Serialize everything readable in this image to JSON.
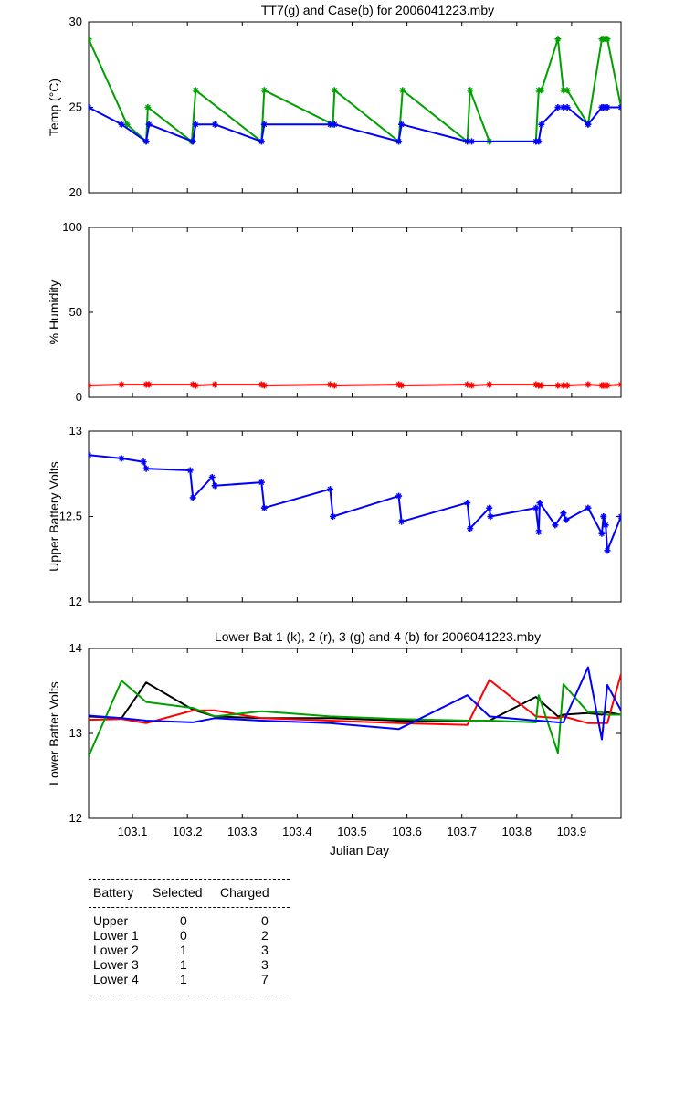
{
  "xaxis": {
    "label": "Julian Day",
    "ticks": [
      "103.1",
      "103.2",
      "103.3",
      "103.4",
      "103.5",
      "103.6",
      "103.7",
      "103.8",
      "103.9"
    ],
    "tick_values": [
      103.1,
      103.2,
      103.3,
      103.4,
      103.5,
      103.6,
      103.7,
      103.8,
      103.9
    ],
    "range": [
      103.02,
      103.99
    ]
  },
  "chart_data": [
    {
      "type": "line",
      "title": "TT7(g) and Case(b) for 2006041223.mby",
      "ylabel": "Temp  (°C)",
      "ylim": [
        20,
        30
      ],
      "yticks": [
        "20",
        "25",
        "30"
      ],
      "ytick_values": [
        20,
        25,
        30
      ],
      "markers": true,
      "series": [
        {
          "name": "TT7",
          "color": "#00a000",
          "x": [
            103.02,
            103.09,
            103.125,
            103.128,
            103.208,
            103.215,
            103.335,
            103.34,
            103.465,
            103.468,
            103.585,
            103.592,
            103.71,
            103.715,
            103.75,
            103.835,
            103.84,
            103.845,
            103.875,
            103.885,
            103.892,
            103.93,
            103.955,
            103.958,
            103.962,
            103.965,
            103.99
          ],
          "y": [
            29,
            24,
            23,
            25,
            23,
            26,
            23,
            26,
            24,
            26,
            23,
            26,
            23,
            26,
            23,
            23,
            26,
            26,
            29,
            26,
            26,
            24,
            29,
            29,
            29,
            29,
            25
          ]
        },
        {
          "name": "Case",
          "color": "#0000ff",
          "x": [
            103.02,
            103.08,
            103.125,
            103.13,
            103.21,
            103.215,
            103.25,
            103.335,
            103.34,
            103.46,
            103.468,
            103.585,
            103.59,
            103.71,
            103.718,
            103.835,
            103.84,
            103.845,
            103.875,
            103.885,
            103.892,
            103.93,
            103.955,
            103.958,
            103.962,
            103.965,
            103.99
          ],
          "y": [
            25,
            24,
            23,
            24,
            23,
            24,
            24,
            23,
            24,
            24,
            24,
            23,
            24,
            23,
            23,
            23,
            23,
            24,
            25,
            25,
            25,
            24,
            25,
            25,
            25,
            25,
            25
          ]
        }
      ]
    },
    {
      "type": "line",
      "title": "",
      "ylabel": "% Humidity",
      "ylim": [
        0,
        100
      ],
      "yticks": [
        "0",
        "50",
        "100"
      ],
      "ytick_values": [
        0,
        50,
        100
      ],
      "markers": true,
      "series": [
        {
          "name": "Humidity",
          "color": "#ff0000",
          "x": [
            103.02,
            103.08,
            103.125,
            103.13,
            103.21,
            103.215,
            103.25,
            103.335,
            103.34,
            103.46,
            103.468,
            103.585,
            103.59,
            103.71,
            103.718,
            103.75,
            103.835,
            103.84,
            103.845,
            103.875,
            103.885,
            103.892,
            103.93,
            103.955,
            103.958,
            103.962,
            103.965,
            103.99
          ],
          "y": [
            7,
            7.5,
            7.5,
            7.5,
            7.5,
            7,
            7.5,
            7.5,
            7,
            7.5,
            7,
            7.5,
            7,
            7.5,
            7,
            7.5,
            7.5,
            7,
            7,
            7,
            7,
            7,
            7.5,
            7,
            7,
            7,
            7,
            7.5
          ]
        }
      ]
    },
    {
      "type": "line",
      "title": "",
      "ylabel": "Upper Battery Volts",
      "ylim": [
        12,
        13
      ],
      "yticks": [
        "12",
        "12.5",
        "13"
      ],
      "ytick_values": [
        12,
        12.5,
        13
      ],
      "markers": true,
      "series": [
        {
          "name": "Upper",
          "color": "#0000ff",
          "x": [
            103.02,
            103.08,
            103.12,
            103.125,
            103.205,
            103.21,
            103.245,
            103.25,
            103.335,
            103.34,
            103.46,
            103.465,
            103.585,
            103.59,
            103.71,
            103.715,
            103.75,
            103.752,
            103.835,
            103.84,
            103.842,
            103.87,
            103.885,
            103.89,
            103.93,
            103.955,
            103.958,
            103.962,
            103.965,
            103.99
          ],
          "y": [
            12.86,
            12.84,
            12.82,
            12.78,
            12.77,
            12.61,
            12.73,
            12.68,
            12.7,
            12.55,
            12.66,
            12.5,
            12.62,
            12.47,
            12.58,
            12.43,
            12.55,
            12.5,
            12.55,
            12.41,
            12.58,
            12.45,
            12.52,
            12.48,
            12.55,
            12.4,
            12.5,
            12.45,
            12.3,
            12.5
          ]
        }
      ]
    },
    {
      "type": "line",
      "title": "Lower Bat 1 (k), 2 (r), 3 (g) and 4 (b) for 2006041223.mby",
      "ylabel": "Lower Batter Volts",
      "ylim": [
        12,
        14
      ],
      "yticks": [
        "12",
        "13",
        "14"
      ],
      "ytick_values": [
        12,
        13,
        14
      ],
      "markers": false,
      "series": [
        {
          "name": "Lower 1",
          "color": "#000000",
          "x": [
            103.02,
            103.08,
            103.125,
            103.21,
            103.25,
            103.335,
            103.46,
            103.585,
            103.71,
            103.75,
            103.835,
            103.84,
            103.875,
            103.885,
            103.93,
            103.955,
            103.965,
            103.99
          ],
          "y": [
            13.2,
            13.18,
            13.6,
            13.28,
            13.2,
            13.18,
            13.18,
            13.15,
            13.15,
            13.15,
            13.43,
            13.4,
            13.2,
            13.22,
            13.24,
            13.22,
            13.25,
            13.22
          ]
        },
        {
          "name": "Lower 2",
          "color": "#ff0000",
          "x": [
            103.02,
            103.08,
            103.125,
            103.21,
            103.25,
            103.335,
            103.46,
            103.585,
            103.71,
            103.75,
            103.835,
            103.875,
            103.885,
            103.93,
            103.955,
            103.965,
            103.99
          ],
          "y": [
            13.16,
            13.17,
            13.12,
            13.27,
            13.27,
            13.18,
            13.15,
            13.12,
            13.1,
            13.63,
            13.2,
            13.18,
            13.2,
            13.12,
            13.12,
            13.12,
            13.7
          ]
        },
        {
          "name": "Lower 3",
          "color": "#00a000",
          "x": [
            103.02,
            103.08,
            103.125,
            103.21,
            103.25,
            103.335,
            103.46,
            103.585,
            103.71,
            103.75,
            103.835,
            103.84,
            103.875,
            103.885,
            103.93,
            103.955,
            103.965,
            103.99
          ],
          "y": [
            12.73,
            13.62,
            13.37,
            13.3,
            13.2,
            13.26,
            13.2,
            13.17,
            13.15,
            13.15,
            13.13,
            13.45,
            12.77,
            13.58,
            13.25,
            13.25,
            13.22,
            13.22
          ]
        },
        {
          "name": "Lower 4",
          "color": "#0000ff",
          "x": [
            103.02,
            103.08,
            103.125,
            103.21,
            103.25,
            103.335,
            103.46,
            103.585,
            103.71,
            103.75,
            103.835,
            103.84,
            103.875,
            103.885,
            103.93,
            103.955,
            103.965,
            103.99
          ],
          "y": [
            13.21,
            13.18,
            13.15,
            13.13,
            13.18,
            13.15,
            13.12,
            13.05,
            13.45,
            13.2,
            13.15,
            13.15,
            13.13,
            13.13,
            13.78,
            12.93,
            13.57,
            13.27
          ]
        }
      ]
    }
  ],
  "table": {
    "headers": [
      "Battery",
      "Selected",
      "Charged"
    ],
    "rows": [
      {
        "battery": "Upper",
        "selected": "0",
        "charged": "0"
      },
      {
        "battery": "Lower 1",
        "selected": "0",
        "charged": "2"
      },
      {
        "battery": "Lower 2",
        "selected": "1",
        "charged": "3"
      },
      {
        "battery": "Lower 3",
        "selected": "1",
        "charged": "3"
      },
      {
        "battery": "Lower 4",
        "selected": "1",
        "charged": "7"
      }
    ]
  }
}
